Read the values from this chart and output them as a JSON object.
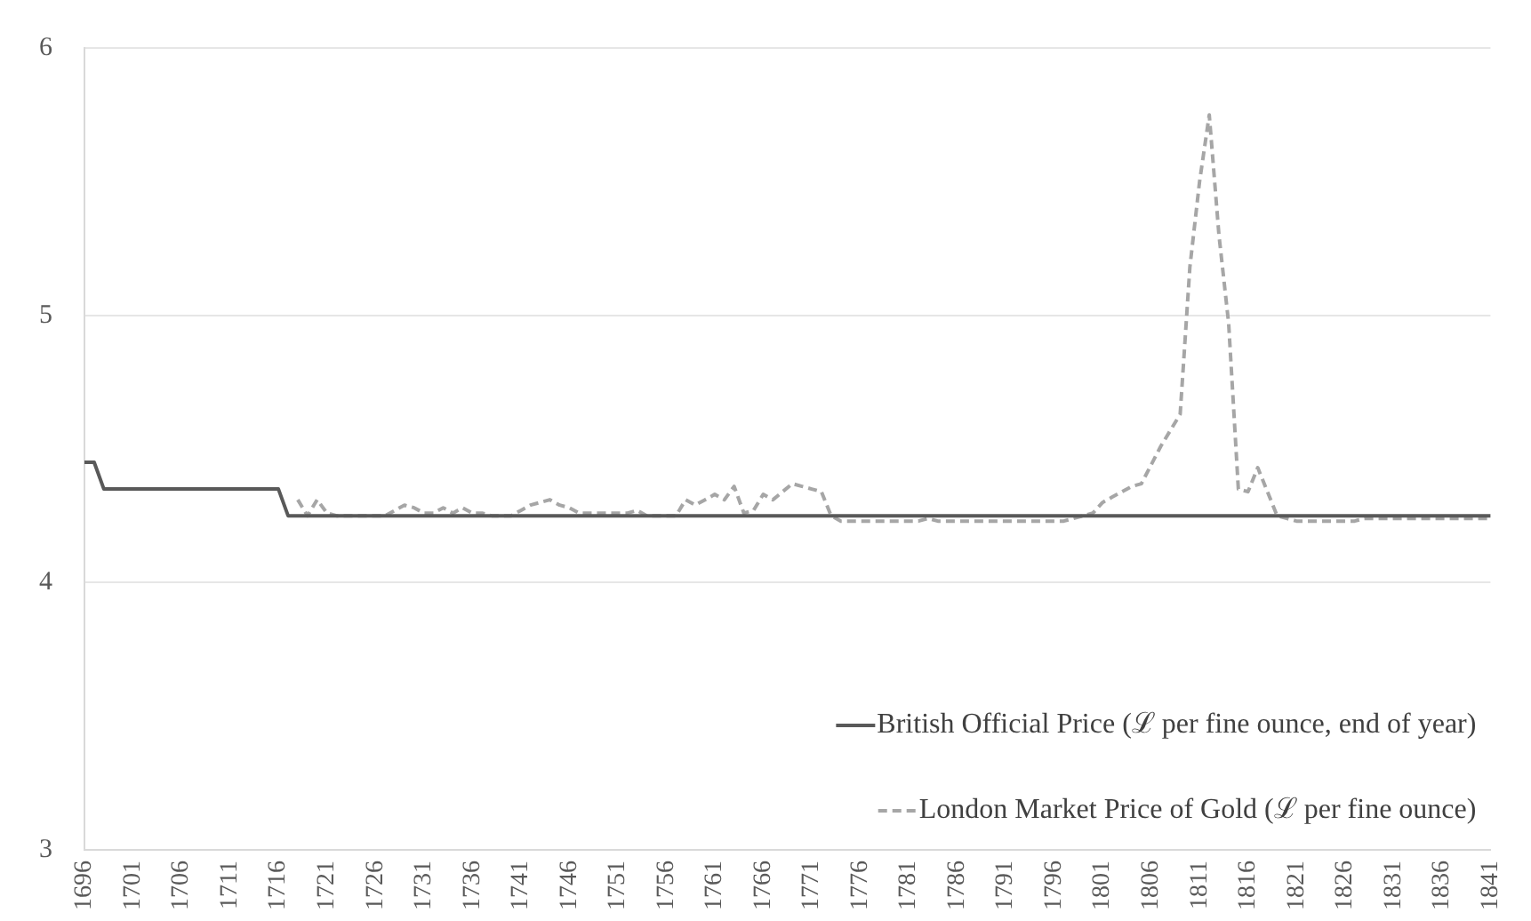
{
  "chart_data": {
    "type": "line",
    "categories": [
      "1696",
      null,
      null,
      null,
      null,
      "1701",
      null,
      null,
      null,
      null,
      "1706",
      null,
      null,
      null,
      null,
      "1711",
      null,
      null,
      null,
      null,
      "1716",
      null,
      null,
      null,
      null,
      "1721",
      null,
      null,
      null,
      null,
      "1726",
      null,
      null,
      null,
      null,
      "1731",
      null,
      null,
      null,
      null,
      "1736",
      null,
      null,
      null,
      null,
      "1741",
      null,
      null,
      null,
      null,
      "1746",
      null,
      null,
      null,
      null,
      "1751",
      null,
      null,
      null,
      null,
      "1756",
      null,
      null,
      null,
      null,
      "1761",
      null,
      null,
      null,
      null,
      "1766",
      null,
      null,
      null,
      null,
      "1771",
      null,
      null,
      null,
      null,
      "1776",
      null,
      null,
      null,
      null,
      "1781",
      null,
      null,
      null,
      null,
      "1786",
      null,
      null,
      null,
      null,
      "1791",
      null,
      null,
      null,
      null,
      "1796",
      null,
      null,
      null,
      null,
      "1801",
      null,
      null,
      null,
      null,
      "1806",
      null,
      null,
      null,
      null,
      "1811",
      null,
      null,
      null,
      null,
      "1816",
      null,
      null,
      null,
      null,
      "1821",
      null,
      null,
      null,
      null,
      "1826",
      null,
      null,
      null,
      null,
      "1831",
      null,
      null,
      null,
      null,
      "1836",
      null,
      null,
      null,
      null,
      "1841"
    ],
    "series": [
      {
        "name": "British Official Price (ℒ per fine ounce, end of year)",
        "color": "#595959",
        "line_style": "solid",
        "values": [
          4.45,
          4.45,
          4.35,
          4.35,
          4.35,
          4.35,
          4.35,
          4.35,
          4.35,
          4.35,
          4.35,
          4.35,
          4.35,
          4.35,
          4.35,
          4.35,
          4.35,
          4.35,
          4.35,
          4.35,
          4.35,
          4.25,
          4.25,
          4.25,
          4.25,
          4.25,
          4.25,
          4.25,
          4.25,
          4.25,
          4.25,
          4.25,
          4.25,
          4.25,
          4.25,
          4.25,
          4.25,
          4.25,
          4.25,
          4.25,
          4.25,
          4.25,
          4.25,
          4.25,
          4.25,
          4.25,
          4.25,
          4.25,
          4.25,
          4.25,
          4.25,
          4.25,
          4.25,
          4.25,
          4.25,
          4.25,
          4.25,
          4.25,
          4.25,
          4.25,
          4.25,
          4.25,
          4.25,
          4.25,
          4.25,
          4.25,
          4.25,
          4.25,
          4.25,
          4.25,
          4.25,
          4.25,
          4.25,
          4.25,
          4.25,
          4.25,
          4.25,
          4.25,
          4.25,
          4.25,
          4.25,
          4.25,
          4.25,
          4.25,
          4.25,
          4.25,
          4.25,
          4.25,
          4.25,
          4.25,
          4.25,
          4.25,
          4.25,
          4.25,
          4.25,
          4.25,
          4.25,
          4.25,
          4.25,
          4.25,
          4.25,
          4.25,
          4.25,
          4.25,
          4.25,
          4.25,
          4.25,
          4.25,
          4.25,
          4.25,
          4.25,
          4.25,
          4.25,
          4.25,
          4.25,
          4.25,
          4.25,
          4.25,
          4.25,
          4.25,
          4.25,
          4.25,
          4.25,
          4.25,
          4.25,
          4.25,
          4.25,
          4.25,
          4.25,
          4.25,
          4.25,
          4.25,
          4.25,
          4.25,
          4.25,
          4.25,
          4.25,
          4.25,
          4.25,
          4.25,
          4.25,
          4.25,
          4.25,
          4.25,
          4.25,
          4.25
        ]
      },
      {
        "name": "London Market Price of Gold (ℒ per fine ounce)",
        "color": "#a6a6a6",
        "line_style": "dashed",
        "values": [
          null,
          null,
          null,
          null,
          null,
          null,
          null,
          null,
          null,
          null,
          null,
          null,
          null,
          null,
          null,
          null,
          null,
          null,
          null,
          null,
          null,
          null,
          4.31,
          4.25,
          4.31,
          4.26,
          4.25,
          4.25,
          4.25,
          4.25,
          4.25,
          4.25,
          4.27,
          4.29,
          4.28,
          4.26,
          4.26,
          4.28,
          4.26,
          4.28,
          4.26,
          4.26,
          4.25,
          4.25,
          4.25,
          4.27,
          4.29,
          4.3,
          4.31,
          4.29,
          4.28,
          4.26,
          4.26,
          4.26,
          4.26,
          4.26,
          4.26,
          4.27,
          4.25,
          4.25,
          4.25,
          4.25,
          4.31,
          4.29,
          4.31,
          4.33,
          4.31,
          4.36,
          4.26,
          4.27,
          4.33,
          4.31,
          4.34,
          4.37,
          4.36,
          4.35,
          4.34,
          4.25,
          4.23,
          4.23,
          4.23,
          4.23,
          4.23,
          4.23,
          4.23,
          4.23,
          4.23,
          4.24,
          4.23,
          4.23,
          4.23,
          4.23,
          4.23,
          4.23,
          4.23,
          4.23,
          4.23,
          4.23,
          4.23,
          4.23,
          4.23,
          4.23,
          4.24,
          4.25,
          4.26,
          4.3,
          4.32,
          4.34,
          4.36,
          4.37,
          4.44,
          4.51,
          4.57,
          4.63,
          5.18,
          5.5,
          5.75,
          5.3,
          4.97,
          4.35,
          4.34,
          4.43,
          4.34,
          4.25,
          4.24,
          4.23,
          4.23,
          4.23,
          4.23,
          4.23,
          4.23,
          4.23,
          4.24,
          4.24,
          4.24,
          4.24,
          4.24,
          4.24,
          4.24,
          4.24,
          4.24,
          4.24,
          4.24,
          4.24,
          4.24,
          4.24
        ]
      }
    ],
    "ylim": [
      3,
      6
    ],
    "yticks": [
      3,
      4,
      5,
      6
    ],
    "grid": "y",
    "legend": "bottom right",
    "marker": "none"
  }
}
